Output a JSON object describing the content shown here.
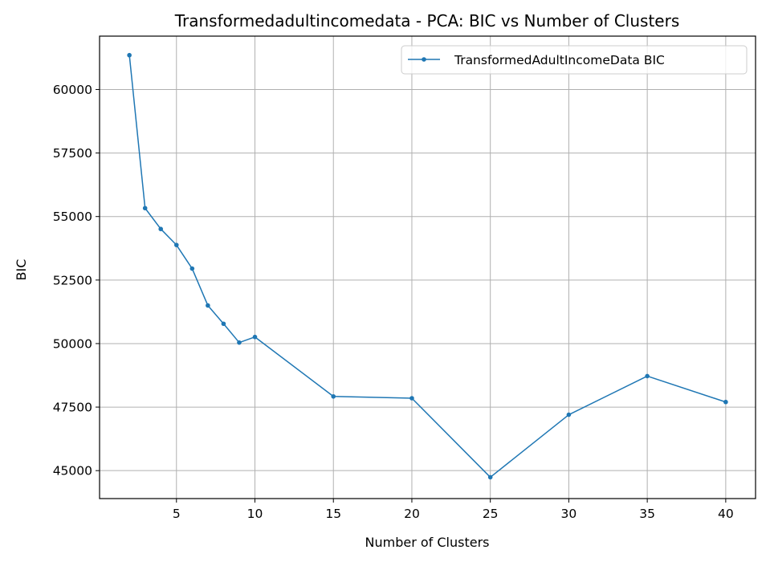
{
  "chart_data": {
    "type": "line",
    "title": "Transformedadultincomedata - PCA: BIC vs Number of Clusters",
    "xlabel": "Number of Clusters",
    "ylabel": "BIC",
    "xlim": [
      0.1,
      41.9
    ],
    "ylim": [
      43900,
      62100
    ],
    "xticks": [
      5,
      10,
      15,
      20,
      25,
      30,
      35,
      40
    ],
    "yticks": [
      45000,
      47500,
      50000,
      52500,
      55000,
      57500,
      60000
    ],
    "grid": true,
    "legend_position": "top-right",
    "series": [
      {
        "name": "TransformedAdultIncomeData BIC",
        "color": "#1f77b4",
        "marker": "circle",
        "x": [
          2,
          3,
          4,
          5,
          6,
          7,
          8,
          9,
          10,
          15,
          20,
          25,
          30,
          35,
          40
        ],
        "y": [
          61350,
          55330,
          54510,
          53880,
          52950,
          51500,
          50780,
          50040,
          50260,
          47920,
          47850,
          44740,
          47200,
          48720,
          47700
        ]
      }
    ]
  }
}
